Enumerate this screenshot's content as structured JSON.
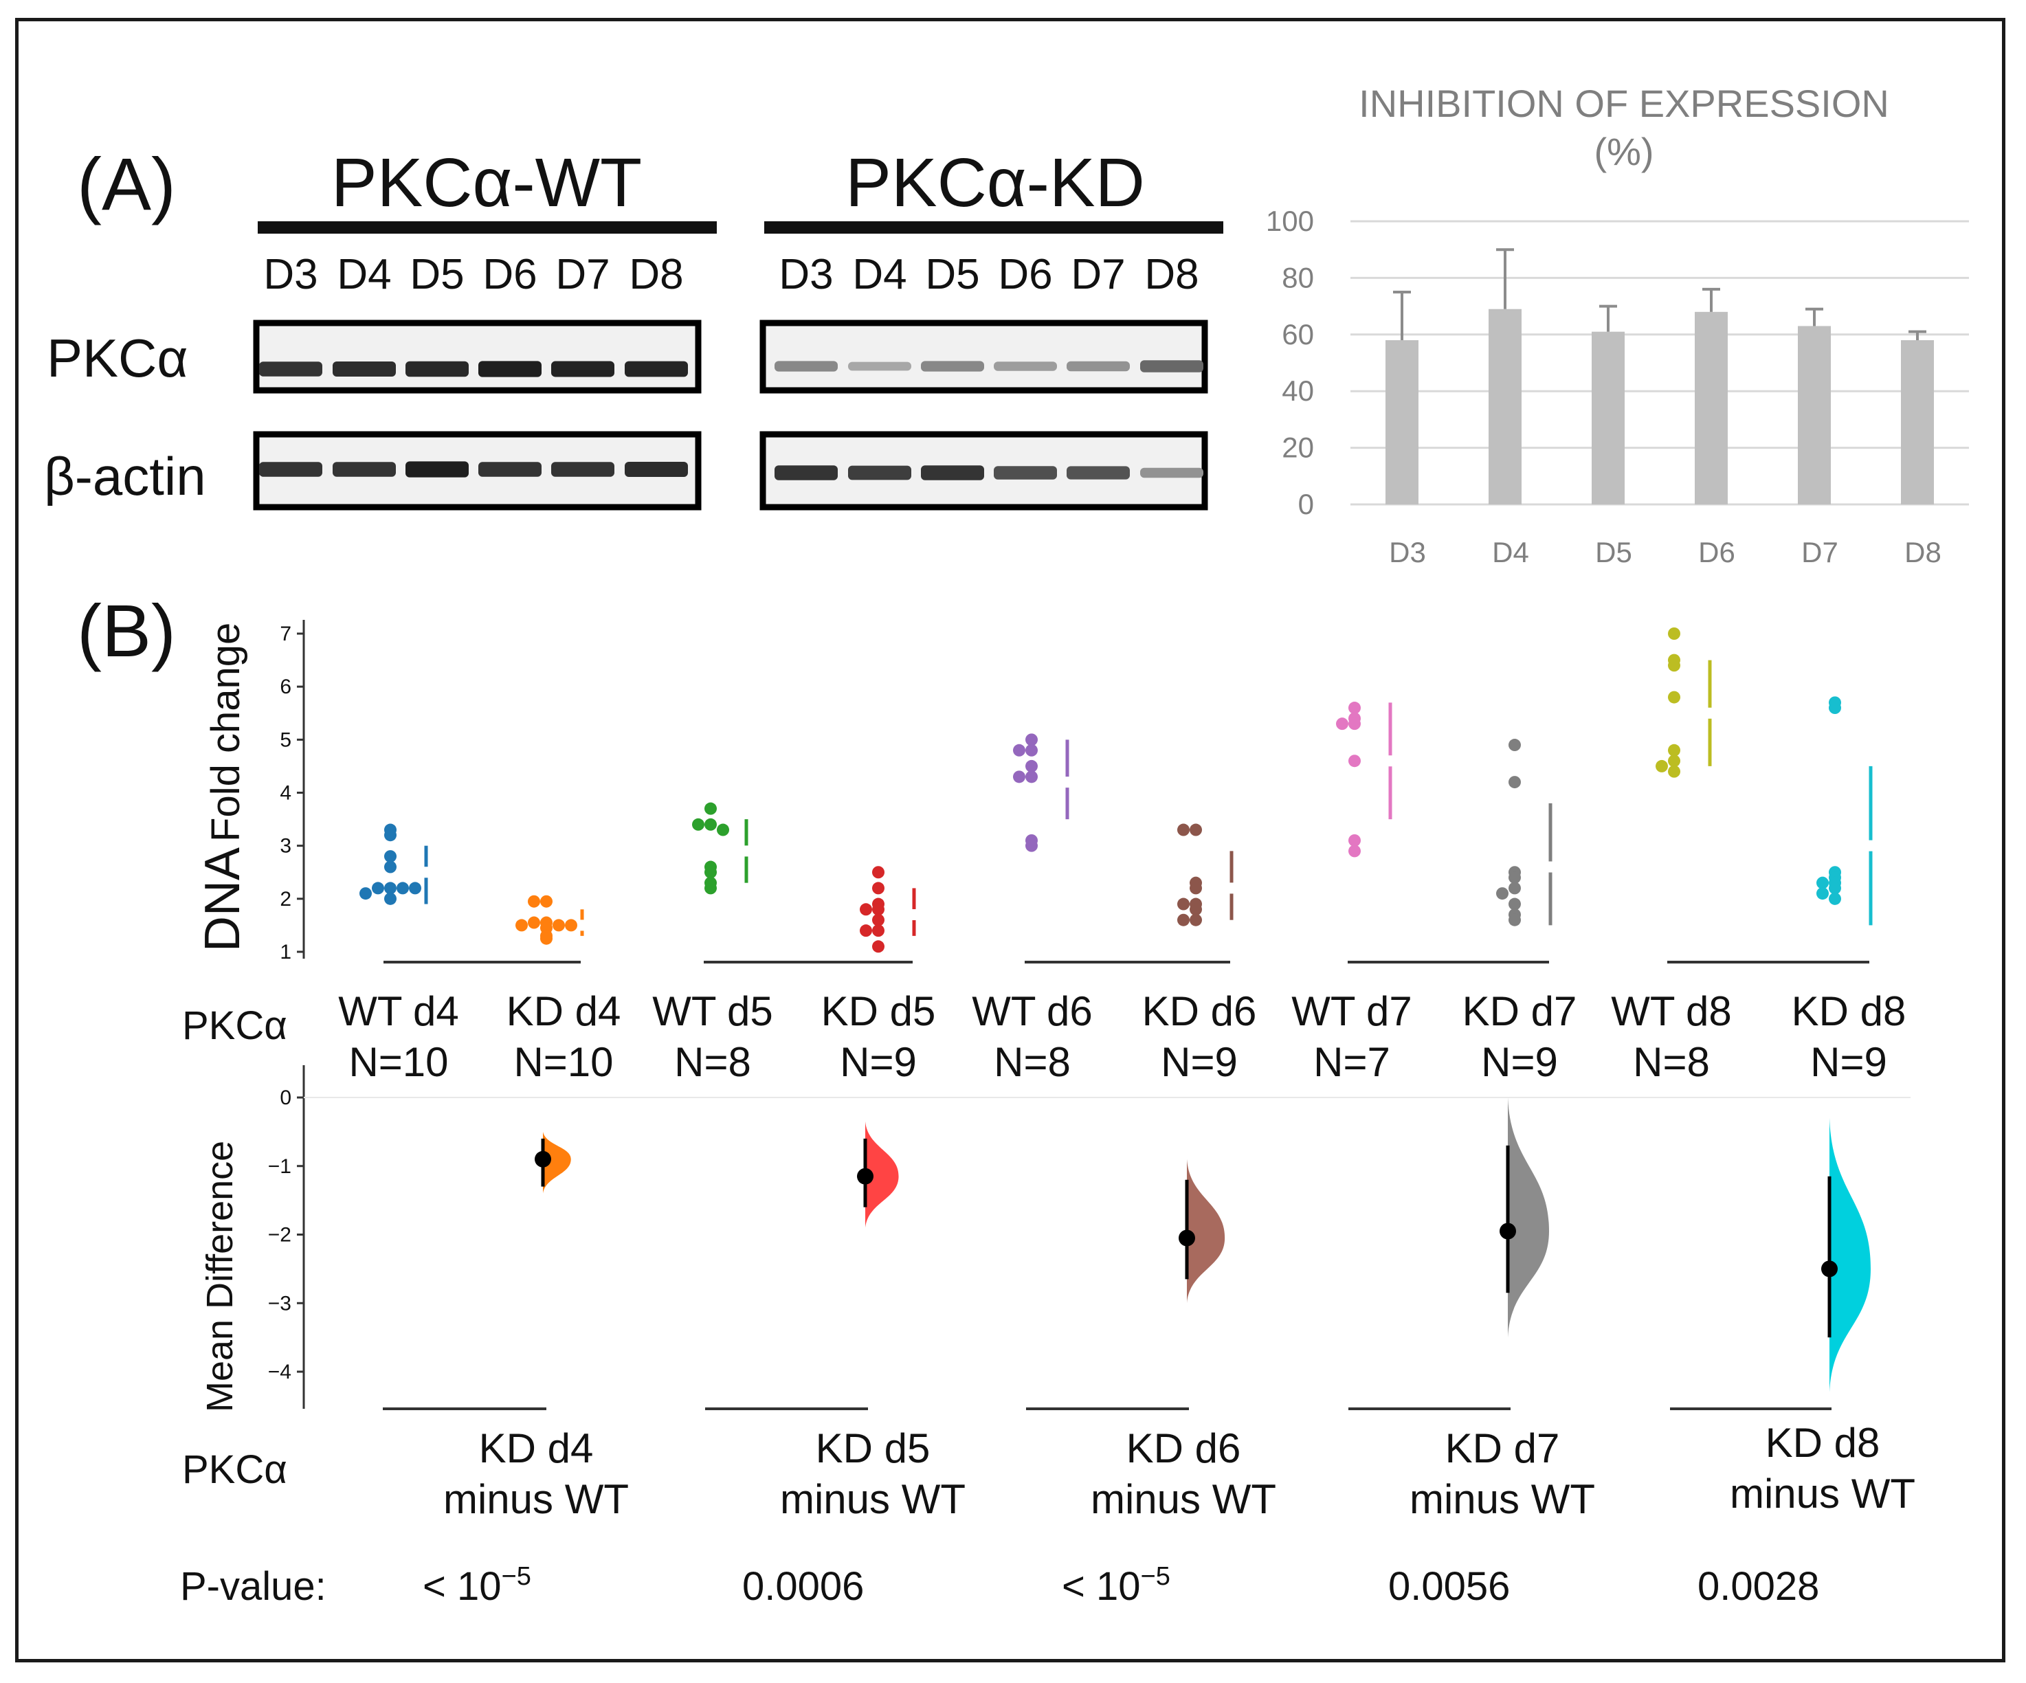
{
  "panel_a": {
    "label": "(A)",
    "wt_group": "PKCα-WT",
    "kd_group": "PKCα-KD",
    "day_labels": [
      "D3",
      "D4",
      "D5",
      "D6",
      "D7",
      "D8"
    ],
    "row_pkca": "PKCα",
    "row_actin": "β-actin",
    "blot_intensity": {
      "wt_pkca": [
        0.85,
        0.88,
        0.9,
        0.95,
        0.93,
        0.92
      ],
      "wt_actin": [
        0.85,
        0.85,
        0.95,
        0.85,
        0.85,
        0.88
      ],
      "kd_pkca": [
        0.45,
        0.3,
        0.45,
        0.35,
        0.4,
        0.6
      ],
      "kd_actin": [
        0.85,
        0.8,
        0.85,
        0.72,
        0.7,
        0.4
      ]
    }
  },
  "chart_data": [
    {
      "type": "bar",
      "title": "INHIBITION OF EXPRESSION",
      "subtitle": "(%)",
      "categories": [
        "D3",
        "D4",
        "D5",
        "D6",
        "D7",
        "D8"
      ],
      "values": [
        58,
        69,
        61,
        68,
        63,
        58
      ],
      "errors": [
        17,
        21,
        9,
        8,
        6,
        3
      ],
      "ylim": [
        0,
        100
      ],
      "yticks": [
        0,
        20,
        40,
        60,
        80,
        100
      ],
      "xlabel": "",
      "ylabel": "",
      "grid": true
    },
    {
      "type": "scatter",
      "panel_label": "(B)",
      "ylabel_big": "DNA",
      "ylabel_small": "Fold change",
      "ylim": [
        1,
        7
      ],
      "yticks": [
        1,
        2,
        3,
        4,
        5,
        6,
        7
      ],
      "row_label": "PKCα",
      "groups": [
        {
          "name": "WT d4",
          "n": "N=10",
          "color": "#1f77b4",
          "values": [
            3.3,
            3.2,
            2.8,
            2.6,
            2.2,
            2.2,
            2.2,
            2.1,
            2.0,
            2.2
          ],
          "mean": 2.5,
          "sd_low": 1.9,
          "sd_high": 3.0
        },
        {
          "name": "KD d4",
          "n": "N=10",
          "color": "#ff7f0e",
          "values": [
            1.95,
            1.95,
            1.55,
            1.55,
            1.5,
            1.5,
            1.5,
            1.45,
            1.3,
            1.25
          ],
          "mean": 1.5,
          "sd_low": 1.3,
          "sd_high": 1.8
        },
        {
          "name": "WT d5",
          "n": "N=8",
          "color": "#2ca02c",
          "values": [
            3.7,
            3.4,
            3.4,
            3.3,
            2.6,
            2.5,
            2.3,
            2.2
          ],
          "mean": 2.9,
          "sd_low": 2.3,
          "sd_high": 3.5
        },
        {
          "name": "KD d5",
          "n": "N=9",
          "color": "#d62728",
          "values": [
            2.5,
            2.2,
            1.9,
            1.8,
            1.8,
            1.6,
            1.4,
            1.4,
            1.1
          ],
          "mean": 1.7,
          "sd_low": 1.3,
          "sd_high": 2.2
        },
        {
          "name": "WT d6",
          "n": "N=8",
          "color": "#9467bd",
          "values": [
            5.0,
            4.8,
            4.8,
            4.5,
            4.3,
            4.3,
            3.1,
            3.0
          ],
          "mean": 4.2,
          "sd_low": 3.5,
          "sd_high": 5.0
        },
        {
          "name": "KD d6",
          "n": "N=9",
          "color": "#8c564b",
          "values": [
            3.3,
            3.3,
            2.3,
            2.2,
            1.9,
            1.9,
            1.8,
            1.6,
            1.6
          ],
          "mean": 2.2,
          "sd_low": 1.6,
          "sd_high": 2.9
        },
        {
          "name": "WT d7",
          "n": "N=7",
          "color": "#e377c2",
          "values": [
            5.6,
            5.4,
            5.3,
            5.3,
            4.6,
            3.1,
            2.9
          ],
          "mean": 4.6,
          "sd_low": 3.5,
          "sd_high": 5.7
        },
        {
          "name": "KD d7",
          "n": "N=9",
          "color": "#7f7f7f",
          "values": [
            4.9,
            4.2,
            2.5,
            2.4,
            2.2,
            2.1,
            1.9,
            1.7,
            1.6
          ],
          "mean": 2.6,
          "sd_low": 1.5,
          "sd_high": 3.8
        },
        {
          "name": "WT d8",
          "n": "N=8",
          "color": "#bcbd22",
          "values": [
            7.0,
            6.5,
            6.4,
            5.8,
            4.8,
            4.6,
            4.5,
            4.4
          ],
          "mean": 5.5,
          "sd_low": 4.5,
          "sd_high": 6.5
        },
        {
          "name": "KD d8",
          "n": "N=9",
          "color": "#17becf",
          "values": [
            5.7,
            5.6,
            2.5,
            2.4,
            2.3,
            2.3,
            2.2,
            2.1,
            2.0
          ],
          "mean": 3.0,
          "sd_low": 1.5,
          "sd_high": 4.5
        }
      ]
    },
    {
      "type": "scatter",
      "subtype": "mean-difference",
      "ylabel": "Mean Difference",
      "ylim": [
        -4.5,
        0.5
      ],
      "yticks": [
        0,
        -1,
        -2,
        -3,
        -4
      ],
      "row_label": "PKCα",
      "pvalue_label": "P-value:",
      "comparisons": [
        {
          "line1": "KD d4",
          "line2": "minus WT",
          "color": "#ff7f0e",
          "mean": -0.9,
          "ci_low": -1.3,
          "ci_high": -0.6,
          "dist_low": -1.4,
          "dist_high": -0.5,
          "p": "< 10",
          "p_exp": "−5"
        },
        {
          "line1": "KD d5",
          "line2": "minus WT",
          "color": "#ff4444",
          "mean": -1.15,
          "ci_low": -1.6,
          "ci_high": -0.6,
          "dist_low": -1.9,
          "dist_high": -0.35,
          "p": "0.0006",
          "p_exp": ""
        },
        {
          "line1": "KD d6",
          "line2": "minus WT",
          "color": "#a86a5e",
          "mean": -2.05,
          "ci_low": -2.65,
          "ci_high": -1.2,
          "dist_low": -3.0,
          "dist_high": -0.9,
          "p": "< 10",
          "p_exp": "−5"
        },
        {
          "line1": "KD d7",
          "line2": "minus WT",
          "color": "#8c8c8c",
          "mean": -1.95,
          "ci_low": -2.85,
          "ci_high": -0.7,
          "dist_low": -3.5,
          "dist_high": 0.0,
          "p": "0.0056",
          "p_exp": ""
        },
        {
          "line1": "KD d8",
          "line2": "minus WT",
          "color": "#00d0de",
          "mean": -2.5,
          "ci_low": -3.5,
          "ci_high": -1.15,
          "dist_low": -4.3,
          "dist_high": -0.3,
          "p": "0.0028",
          "p_exp": ""
        }
      ]
    }
  ]
}
